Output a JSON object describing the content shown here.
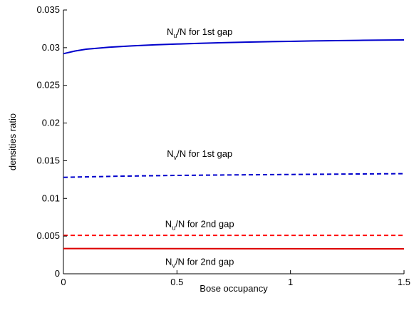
{
  "chart_data": {
    "type": "line",
    "title": "",
    "xlabel": "Bose occupancy",
    "ylabel": "densities ratio",
    "xlim": [
      0,
      1.5
    ],
    "ylim": [
      0,
      0.035
    ],
    "x_ticks": [
      0,
      0.5,
      1,
      1.5
    ],
    "x_tick_labels": [
      "0",
      "0.5",
      "1",
      "1.5"
    ],
    "y_ticks": [
      0,
      0.005,
      0.01,
      0.015,
      0.02,
      0.025,
      0.03,
      0.035
    ],
    "y_tick_labels": [
      "0",
      "0.005",
      "0.01",
      "0.015",
      "0.02",
      "0.025",
      "0.03",
      "0.035"
    ],
    "grid": false,
    "legend": "none",
    "series": [
      {
        "color": "#0000cc",
        "style": "solid",
        "x": [
          0,
          0.05,
          0.1,
          0.2,
          0.3,
          0.4,
          0.5,
          0.6,
          0.7,
          0.8,
          0.9,
          1.0,
          1.1,
          1.2,
          1.3,
          1.4,
          1.5
        ],
        "y": [
          0.0292,
          0.02955,
          0.0298,
          0.03005,
          0.03023,
          0.03037,
          0.03048,
          0.03058,
          0.03066,
          0.03073,
          0.03079,
          0.03084,
          0.03089,
          0.03093,
          0.03097,
          0.031,
          0.03103
        ]
      },
      {
        "color": "#0000cc",
        "style": "dashed",
        "x": [
          0,
          0.25,
          0.5,
          0.75,
          1.0,
          1.25,
          1.5
        ],
        "y": [
          0.0128,
          0.01295,
          0.01305,
          0.01312,
          0.01318,
          0.01323,
          0.01328
        ]
      },
      {
        "color": "#ff0000",
        "style": "dashed",
        "x": [
          0,
          0.5,
          1.0,
          1.5
        ],
        "y": [
          0.0051,
          0.0051,
          0.0051,
          0.0051
        ]
      },
      {
        "color": "#dd0000",
        "style": "solid",
        "x": [
          0,
          0.5,
          1.0,
          1.5
        ],
        "y": [
          0.00335,
          0.00333,
          0.00332,
          0.00331
        ]
      }
    ],
    "annotations": [
      {
        "main": "N",
        "sub": "u",
        "rest": "/N for 1st gap",
        "x": 0.6,
        "y": 0.0317
      },
      {
        "main": "N",
        "sub": "v",
        "rest": "/N for 1st gap",
        "x": 0.6,
        "y": 0.0155
      },
      {
        "main": "N",
        "sub": "u",
        "rest": "/N for 2nd gap",
        "x": 0.6,
        "y": 0.0062
      },
      {
        "main": "N",
        "sub": "v",
        "rest": "/N for 2nd gap",
        "x": 0.6,
        "y": 0.0012
      }
    ]
  }
}
